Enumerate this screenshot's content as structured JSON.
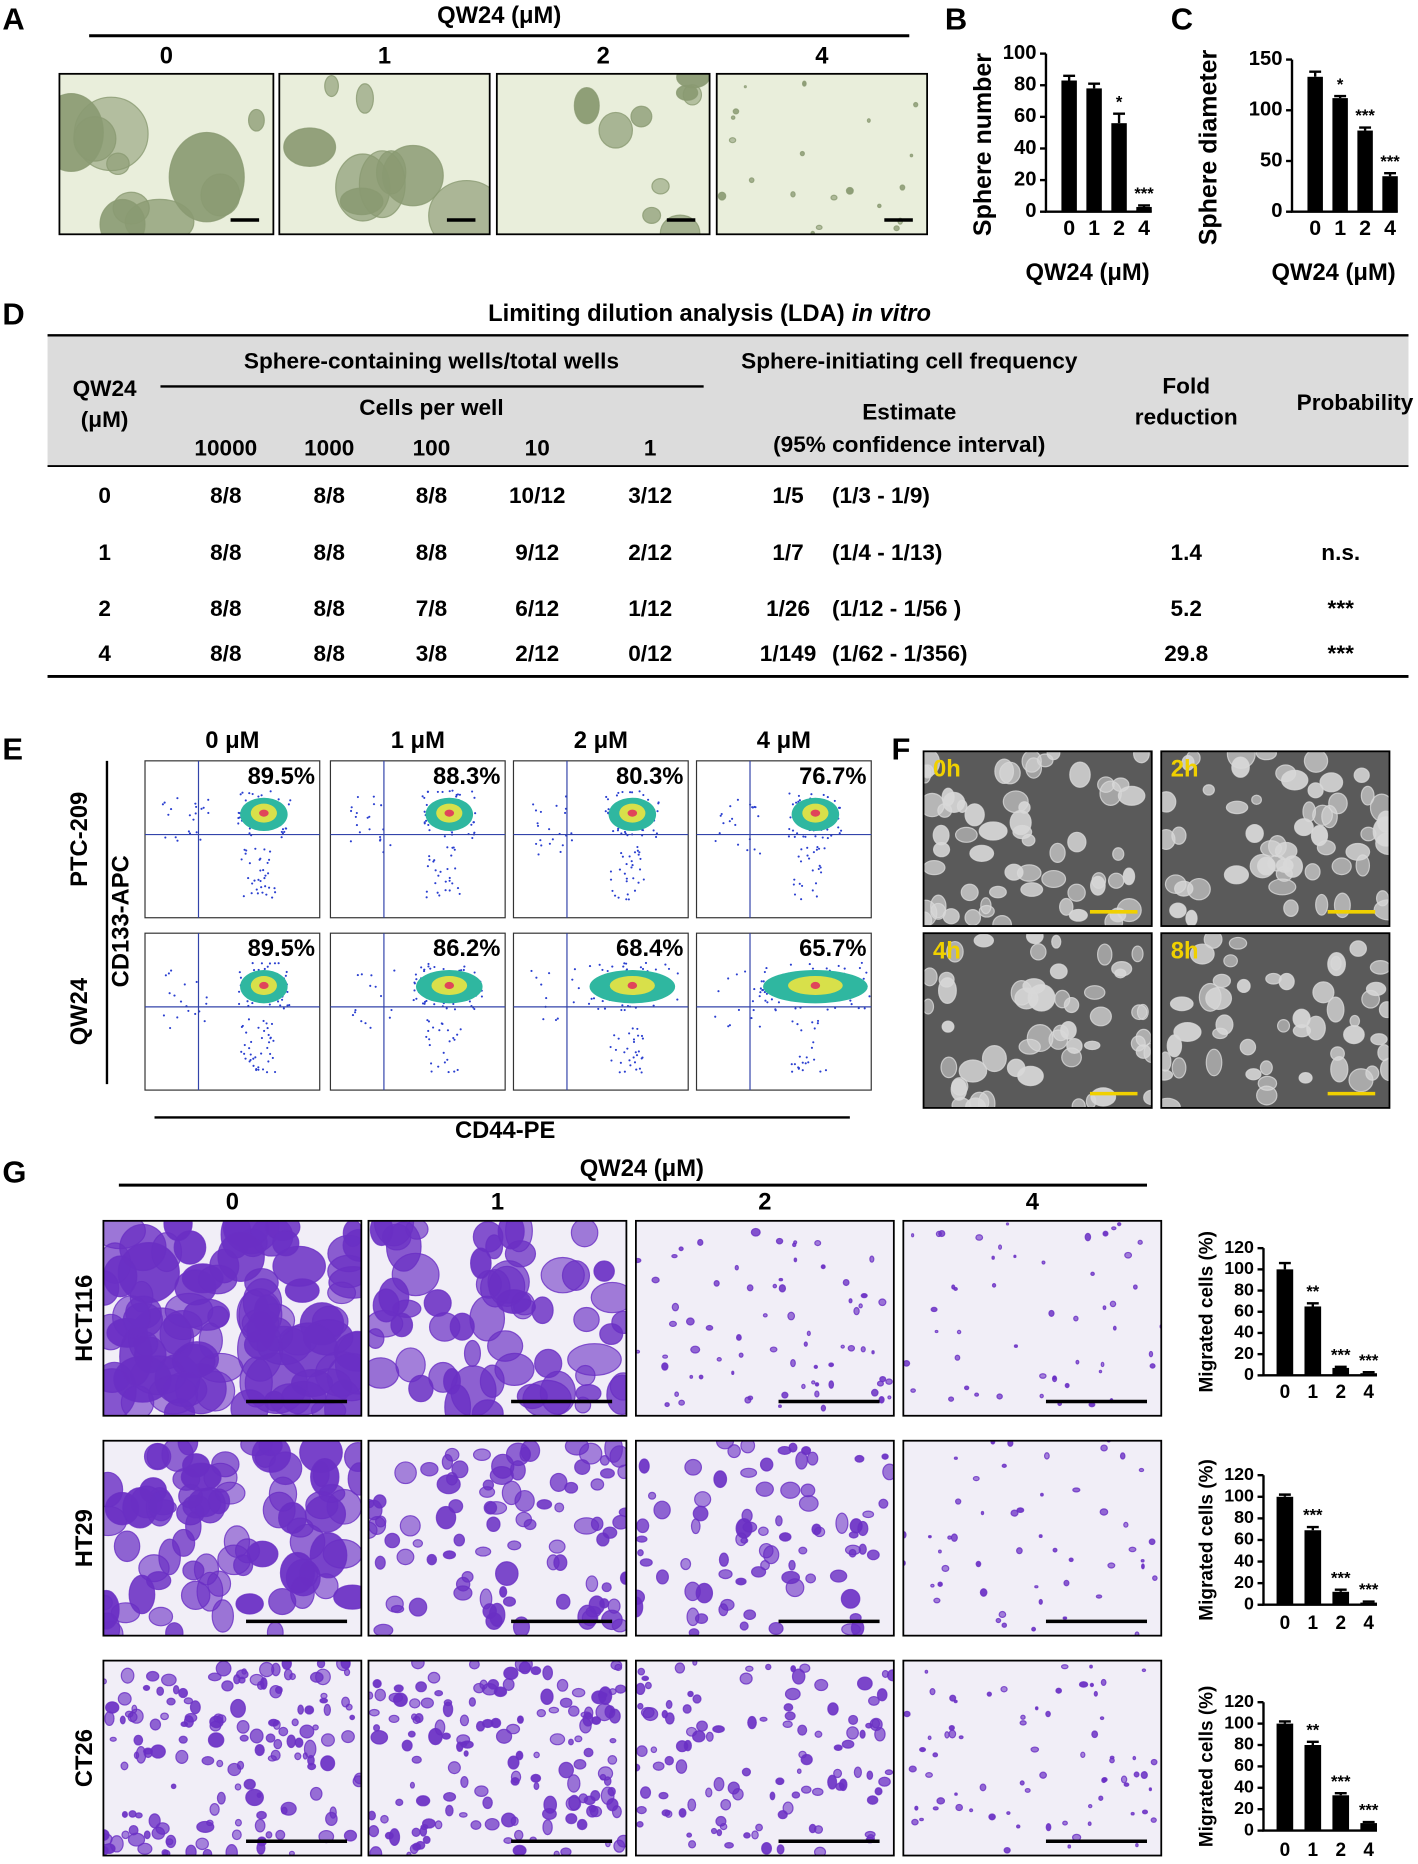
{
  "panel_labels": [
    "A",
    "B",
    "C",
    "D",
    "E",
    "F",
    "G"
  ],
  "panel_a": {
    "title": "QW24 (μM)",
    "columns": [
      "0",
      "1",
      "2",
      "4"
    ]
  },
  "chart_data": [
    {
      "type": "bar",
      "y_label": "Sphere number",
      "x_label": "QW24 (μM)",
      "categories": [
        "0",
        "1",
        "2",
        "4"
      ],
      "values": [
        83,
        78,
        56,
        3
      ],
      "errors": [
        3,
        3,
        6,
        1
      ],
      "significance": [
        null,
        null,
        "*",
        "***"
      ],
      "color": "#000000",
      "ylim": [
        0,
        100
      ],
      "yticks": [
        0,
        20,
        40,
        60,
        80,
        100
      ]
    },
    {
      "type": "bar",
      "y_label": "Sphere diameter",
      "x_label": "QW24 (μM)",
      "categories": [
        "0",
        "1",
        "2",
        "4"
      ],
      "values": [
        133,
        112,
        80,
        35
      ],
      "errors": [
        5,
        2,
        3,
        3
      ],
      "significance": [
        null,
        "*",
        "***",
        "***"
      ],
      "color": "#000000",
      "ylim": [
        0,
        150
      ],
      "yticks": [
        0,
        50,
        100,
        150
      ]
    },
    {
      "type": "bar",
      "y_label": "Migrated cells (%)",
      "categories": [
        "0",
        "1",
        "2",
        "4"
      ],
      "values": [
        100,
        65,
        7,
        2
      ],
      "errors": [
        6,
        3,
        1,
        1
      ],
      "significance": [
        null,
        "**",
        "***",
        "***"
      ],
      "color": "#000000",
      "ylim": [
        0,
        120
      ],
      "yticks": [
        0,
        20,
        40,
        60,
        80,
        100,
        120
      ]
    },
    {
      "type": "bar",
      "y_label": "Migrated cells (%)",
      "categories": [
        "0",
        "1",
        "2",
        "4"
      ],
      "values": [
        100,
        69,
        12,
        2
      ],
      "errors": [
        2,
        3,
        2,
        1
      ],
      "significance": [
        null,
        "***",
        "***",
        "***"
      ],
      "color": "#000000",
      "ylim": [
        0,
        120
      ],
      "yticks": [
        0,
        20,
        40,
        60,
        80,
        100,
        120
      ]
    },
    {
      "type": "bar",
      "y_label": "Migrated cells (%)",
      "categories": [
        "0",
        "1",
        "2",
        "4"
      ],
      "values": [
        100,
        80,
        33,
        7
      ],
      "errors": [
        2,
        3,
        2,
        1
      ],
      "significance": [
        null,
        "**",
        "***",
        "***"
      ],
      "color": "#000000",
      "ylim": [
        0,
        120
      ],
      "yticks": [
        0,
        20,
        40,
        60,
        80,
        100,
        120
      ]
    }
  ],
  "table": {
    "title": "Limiting dilution analysis (LDA)",
    "title_italic": "in vitro",
    "header": {
      "qw24": "QW24",
      "unit": "(μM)",
      "wells": "Sphere-containing wells/total wells",
      "cells_per_well": "Cells per well",
      "cell_counts": [
        "10000",
        "1000",
        "100",
        "10",
        "1"
      ],
      "frequency": "Sphere-initiating cell frequency",
      "estimate": "Estimate",
      "ci": "(95% confidence interval)",
      "fold_1": "Fold",
      "fold_2": "reduction",
      "probability": "Probability"
    },
    "rows": [
      [
        "0",
        "8/8",
        "8/8",
        "8/8",
        "10/12",
        "3/12",
        "1/5",
        "(1/3 - 1/9)",
        null,
        null
      ],
      [
        "1",
        "8/8",
        "8/8",
        "8/8",
        "9/12",
        "2/12",
        "1/7",
        "(1/4 - 1/13)",
        "1.4",
        "n.s."
      ],
      [
        "2",
        "8/8",
        "8/8",
        "7/8",
        "6/12",
        "1/12",
        "1/26",
        "(1/12 - 1/56 )",
        "5.2",
        "***"
      ],
      [
        "4",
        "8/8",
        "8/8",
        "3/8",
        "2/12",
        "0/12",
        "1/149",
        "(1/62 - 1/356)",
        "29.8",
        "***"
      ]
    ]
  },
  "panel_e": {
    "columns": [
      "0 μM",
      "1 μM",
      "2 μM",
      "4 μM"
    ],
    "rows": [
      "PTC-209",
      "QW24"
    ],
    "y_label": "CD133-APC",
    "x_label": "CD44-PE",
    "percentages": [
      [
        "89.5%",
        "88.3%",
        "80.3%",
        "76.7%"
      ],
      [
        "89.5%",
        "86.2%",
        "68.4%",
        "65.7%"
      ]
    ]
  },
  "panel_f": {
    "times": [
      "0h",
      "2h",
      "4h",
      "8h"
    ]
  },
  "panel_g": {
    "title": "QW24 (μM)",
    "columns": [
      "0",
      "1",
      "2",
      "4"
    ],
    "rows": [
      "HCT116",
      "HT29",
      "CT26"
    ]
  }
}
